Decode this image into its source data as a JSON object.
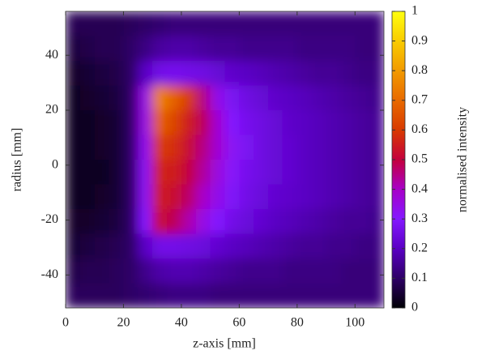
{
  "chart_data": {
    "type": "heatmap",
    "xlabel": "z-axis [mm]",
    "ylabel": "radius [mm]",
    "colorbar_label": "normalised intensity",
    "xlim": [
      0,
      110
    ],
    "ylim": [
      -52,
      56
    ],
    "xticks": [
      0,
      20,
      40,
      60,
      80,
      100
    ],
    "yticks": [
      -40,
      -20,
      0,
      20,
      40
    ],
    "clim": [
      0,
      1
    ],
    "cticks": [
      0,
      0.1,
      0.2,
      0.3,
      0.4,
      0.5,
      0.6,
      0.7,
      0.8,
      0.9,
      1
    ],
    "colormap": [
      [
        0,
        "#000004"
      ],
      [
        0.1,
        "#2e0066"
      ],
      [
        0.2,
        "#5a00c4"
      ],
      [
        0.3,
        "#8418ff"
      ],
      [
        0.4,
        "#a800c8"
      ],
      [
        0.5,
        "#c4003c"
      ],
      [
        0.6,
        "#d83a00"
      ],
      [
        0.7,
        "#e86a00"
      ],
      [
        0.8,
        "#f29a00"
      ],
      [
        0.9,
        "#f9cc00"
      ],
      [
        1,
        "#ffff10"
      ]
    ],
    "x_edges": [
      0,
      5,
      10,
      15,
      20,
      25,
      30,
      35,
      40,
      45,
      50,
      55,
      60,
      65,
      70,
      75,
      80,
      85,
      90,
      95,
      100,
      105,
      110
    ],
    "y_edges": [
      56,
      47,
      38,
      29,
      20,
      11,
      2,
      -7,
      -16,
      -25,
      -34,
      -43,
      -52
    ],
    "values": [
      [
        0.08,
        0.08,
        0.08,
        0.08,
        0.09,
        0.1,
        0.11,
        0.12,
        0.12,
        0.12,
        0.12,
        0.12,
        0.12,
        0.12,
        0.12,
        0.12,
        0.12,
        0.12,
        0.12,
        0.12,
        0.12,
        0.12
      ],
      [
        0.06,
        0.07,
        0.08,
        0.08,
        0.1,
        0.13,
        0.16,
        0.17,
        0.17,
        0.16,
        0.15,
        0.15,
        0.14,
        0.14,
        0.14,
        0.14,
        0.13,
        0.13,
        0.13,
        0.13,
        0.12,
        0.12
      ],
      [
        0.04,
        0.05,
        0.06,
        0.07,
        0.1,
        0.2,
        0.26,
        0.27,
        0.26,
        0.25,
        0.23,
        0.21,
        0.2,
        0.19,
        0.18,
        0.17,
        0.16,
        0.15,
        0.15,
        0.14,
        0.13,
        0.13
      ],
      [
        0.03,
        0.04,
        0.05,
        0.06,
        0.1,
        0.35,
        0.75,
        0.68,
        0.6,
        0.45,
        0.34,
        0.28,
        0.25,
        0.23,
        0.21,
        0.2,
        0.19,
        0.18,
        0.17,
        0.16,
        0.15,
        0.14
      ],
      [
        0.03,
        0.03,
        0.04,
        0.05,
        0.1,
        0.35,
        0.68,
        0.62,
        0.55,
        0.48,
        0.38,
        0.3,
        0.27,
        0.25,
        0.23,
        0.21,
        0.2,
        0.19,
        0.18,
        0.17,
        0.16,
        0.15
      ],
      [
        0.03,
        0.03,
        0.04,
        0.05,
        0.1,
        0.33,
        0.6,
        0.58,
        0.52,
        0.45,
        0.38,
        0.32,
        0.28,
        0.25,
        0.23,
        0.22,
        0.2,
        0.19,
        0.18,
        0.17,
        0.16,
        0.15
      ],
      [
        0.03,
        0.03,
        0.03,
        0.05,
        0.1,
        0.32,
        0.56,
        0.55,
        0.5,
        0.43,
        0.36,
        0.31,
        0.27,
        0.25,
        0.23,
        0.22,
        0.2,
        0.19,
        0.18,
        0.17,
        0.16,
        0.15
      ],
      [
        0.03,
        0.03,
        0.04,
        0.05,
        0.1,
        0.32,
        0.55,
        0.52,
        0.47,
        0.4,
        0.34,
        0.29,
        0.26,
        0.24,
        0.22,
        0.21,
        0.2,
        0.19,
        0.18,
        0.17,
        0.16,
        0.15
      ],
      [
        0.04,
        0.04,
        0.05,
        0.06,
        0.1,
        0.3,
        0.52,
        0.48,
        0.42,
        0.35,
        0.3,
        0.26,
        0.24,
        0.22,
        0.2,
        0.19,
        0.18,
        0.17,
        0.16,
        0.15,
        0.15,
        0.14
      ],
      [
        0.05,
        0.06,
        0.07,
        0.08,
        0.1,
        0.2,
        0.26,
        0.26,
        0.25,
        0.24,
        0.22,
        0.2,
        0.19,
        0.18,
        0.17,
        0.16,
        0.15,
        0.15,
        0.14,
        0.14,
        0.13,
        0.13
      ],
      [
        0.07,
        0.08,
        0.08,
        0.09,
        0.1,
        0.14,
        0.17,
        0.18,
        0.18,
        0.17,
        0.16,
        0.15,
        0.14,
        0.14,
        0.14,
        0.13,
        0.13,
        0.13,
        0.13,
        0.12,
        0.12,
        0.12
      ],
      [
        0.09,
        0.09,
        0.09,
        0.09,
        0.1,
        0.11,
        0.12,
        0.13,
        0.13,
        0.13,
        0.12,
        0.12,
        0.12,
        0.12,
        0.12,
        0.12,
        0.12,
        0.12,
        0.12,
        0.12,
        0.12,
        0.12
      ]
    ]
  }
}
